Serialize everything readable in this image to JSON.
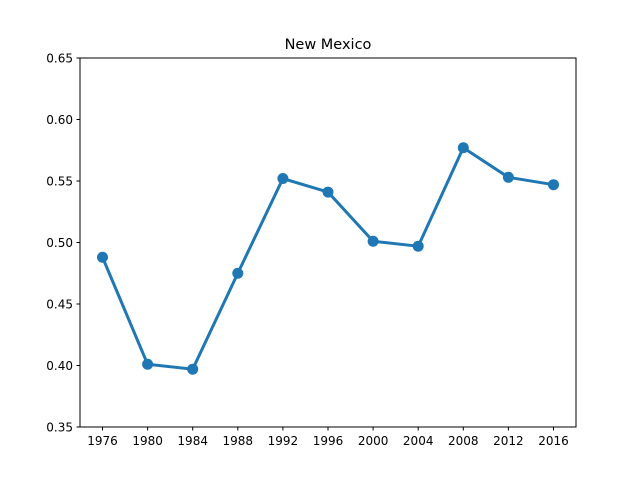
{
  "chart_data": {
    "type": "line",
    "title": "New Mexico",
    "xlabel": "",
    "ylabel": "",
    "categories": [
      "1976",
      "1980",
      "1984",
      "1988",
      "1992",
      "1996",
      "2000",
      "2004",
      "2008",
      "2012",
      "2016"
    ],
    "series": [
      {
        "values": [
          0.488,
          0.401,
          0.397,
          0.475,
          0.552,
          0.541,
          0.501,
          0.497,
          0.577,
          0.553,
          0.547
        ],
        "color": "#1f77b4"
      }
    ],
    "ylim": [
      0.35,
      0.65
    ],
    "yticks": [
      "0.35",
      "0.40",
      "0.45",
      "0.50",
      "0.55",
      "0.60",
      "0.65"
    ],
    "grid": false,
    "legend": "none"
  }
}
